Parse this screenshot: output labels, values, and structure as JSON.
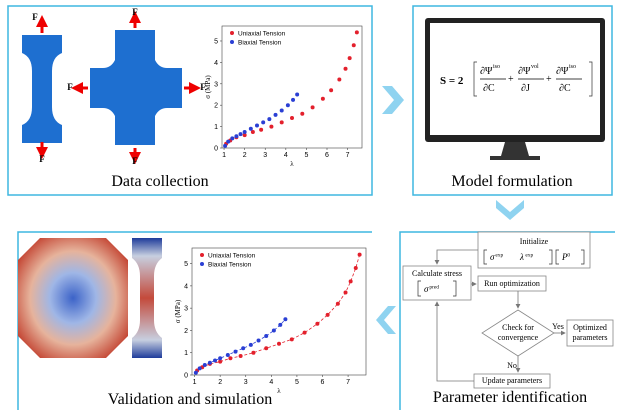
{
  "panels": {
    "data_collection": "Data collection",
    "model_formulation": "Model formulation",
    "parameter_identification": "Parameter identification",
    "validation": "Validation and simulation"
  },
  "force_label": "F",
  "equation": {
    "lhs": "S = 2",
    "terms": [
      {
        "num": "∂Ψ",
        "sup": "iso",
        "den": "∂C"
      },
      {
        "num": "∂Ψ",
        "sup": "vol",
        "den": "∂J"
      },
      {
        "num": "∂Ψ",
        "sup": "iso",
        "den": "∂C"
      }
    ],
    "plus": "+"
  },
  "flowchart": {
    "initialize": "Initialize",
    "init_params": [
      {
        "base": "σ",
        "sup": "exp"
      },
      {
        "base": "λ",
        "sup": "exp"
      },
      {
        "base": "P",
        "sup": "0"
      }
    ],
    "calculate": "Calculate stress",
    "calc_param": {
      "base": "σ",
      "sup": "pred"
    },
    "run": "Run optimization",
    "check": [
      "Check for",
      "convergence"
    ],
    "yes": "Yes",
    "no": "No",
    "optimized": [
      "Optimized",
      "parameters"
    ],
    "update": "Update parameters"
  },
  "charts": [
    {
      "type": "scatter",
      "x_label": "λ",
      "y_label": "σ (MPa)",
      "xlim": [
        0.9,
        7.7
      ],
      "ylim": [
        0,
        5.7
      ],
      "xticks": [
        1,
        2,
        3,
        4,
        5,
        6,
        7
      ],
      "yticks": [
        0,
        1,
        2,
        3,
        4,
        5
      ],
      "legend": "upper left",
      "fit_lines": false,
      "series": [
        {
          "name": "Uniaxial Tension",
          "color": "#e3202c",
          "x": [
            1.1,
            1.3,
            1.6,
            2.0,
            2.4,
            2.8,
            3.3,
            3.8,
            4.3,
            4.8,
            5.3,
            5.8,
            6.2,
            6.6,
            6.9,
            7.1,
            7.3,
            7.45
          ],
          "y": [
            0.2,
            0.35,
            0.5,
            0.6,
            0.75,
            0.85,
            1.0,
            1.2,
            1.4,
            1.6,
            1.9,
            2.3,
            2.7,
            3.2,
            3.7,
            4.2,
            4.8,
            5.4
          ]
        },
        {
          "name": "Biaxial Tension",
          "color": "#2a3fd4",
          "x": [
            1.05,
            1.2,
            1.4,
            1.6,
            1.8,
            2.0,
            2.3,
            2.6,
            2.9,
            3.2,
            3.5,
            3.8,
            4.1,
            4.35,
            4.55
          ],
          "y": [
            0.1,
            0.3,
            0.45,
            0.55,
            0.65,
            0.75,
            0.9,
            1.05,
            1.2,
            1.35,
            1.55,
            1.75,
            2.0,
            2.25,
            2.5
          ]
        }
      ]
    },
    {
      "type": "scatter",
      "x_label": "λ",
      "y_label": "σ (MPa)",
      "xlim": [
        0.9,
        7.7
      ],
      "ylim": [
        0,
        5.7
      ],
      "xticks": [
        1,
        2,
        3,
        4,
        5,
        6,
        7
      ],
      "yticks": [
        0,
        1,
        2,
        3,
        4,
        5
      ],
      "legend": "upper left",
      "fit_lines": true,
      "series": [
        {
          "name": "Uniaxial Tension",
          "color": "#e3202c",
          "x": [
            1.1,
            1.3,
            1.6,
            2.0,
            2.4,
            2.8,
            3.3,
            3.8,
            4.3,
            4.8,
            5.3,
            5.8,
            6.2,
            6.6,
            6.9,
            7.1,
            7.3,
            7.45
          ],
          "y": [
            0.2,
            0.35,
            0.5,
            0.6,
            0.75,
            0.85,
            1.0,
            1.2,
            1.4,
            1.6,
            1.9,
            2.3,
            2.7,
            3.2,
            3.7,
            4.2,
            4.8,
            5.4
          ]
        },
        {
          "name": "Biaxial Tension",
          "color": "#2a3fd4",
          "x": [
            1.05,
            1.2,
            1.4,
            1.6,
            1.8,
            2.0,
            2.3,
            2.6,
            2.9,
            3.2,
            3.5,
            3.8,
            4.1,
            4.35,
            4.55
          ],
          "y": [
            0.1,
            0.3,
            0.45,
            0.55,
            0.65,
            0.75,
            0.9,
            1.05,
            1.2,
            1.35,
            1.55,
            1.75,
            2.0,
            2.25,
            2.5
          ]
        }
      ]
    }
  ]
}
